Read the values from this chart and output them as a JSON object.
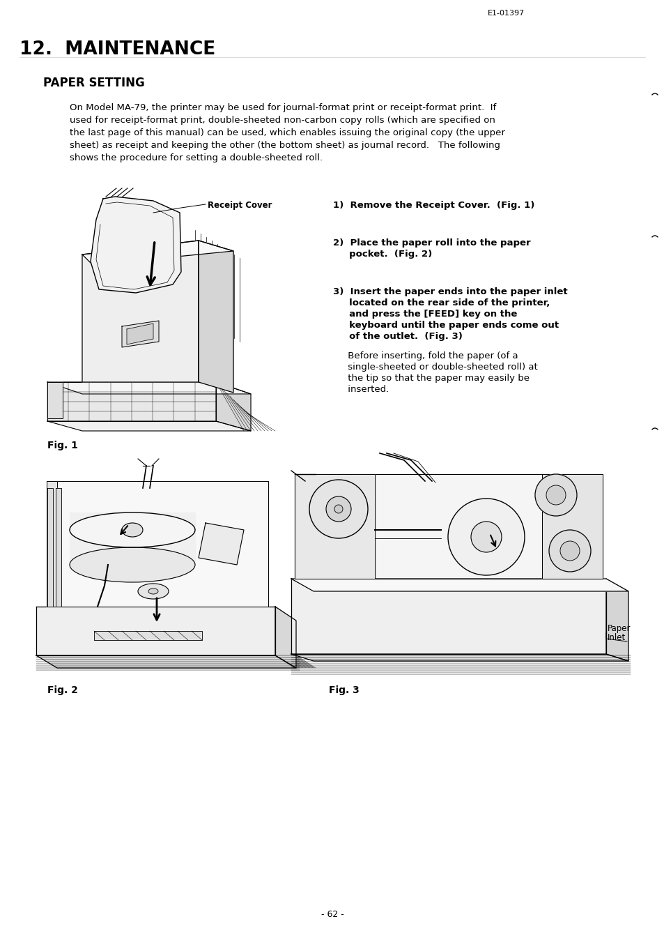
{
  "bg_color": "#ffffff",
  "header_code": "E1-01397",
  "chapter_title": "12.  MAINTENANCE",
  "section_title": "PAPER SETTING",
  "body_line1": "On Model MA-79, the printer may be used for journal-format print or receipt-format print.  If",
  "body_line2": "used for receipt-format print, double-sheeted non-carbon copy rolls (which are specified on",
  "body_line3": "the last page of this manual) can be used, which enables issuing the original copy (the upper",
  "body_line4": "sheet) as receipt and keeping the other (the bottom sheet) as journal record.   The following",
  "body_line5": "shows the procedure for setting a double-sheeted roll.",
  "step1": "1)  Remove the Receipt Cover.  (Fig. 1)",
  "step2a": "2)  Place the paper roll into the paper",
  "step2b": "     pocket.  (Fig. 2)",
  "step3a": "3)  Insert the paper ends into the paper inlet",
  "step3b": "     located on the rear side of the printer,",
  "step3c": "     and press the [FEED] key on the",
  "step3d": "     keyboard until the paper ends come out",
  "step3e": "     of the outlet.  (Fig. 3)",
  "step3f": "     Before inserting, fold the paper (of a",
  "step3g": "     single-sheeted or double-sheeted roll) at",
  "step3h": "     the tip so that the paper may easily be",
  "step3i": "     inserted.",
  "receipt_cover_label": "Receipt Cover",
  "paper_inlet_label1": "Paper",
  "paper_inlet_label2": "Inlet",
  "fig1_label": "Fig. 1",
  "fig2_label": "Fig. 2",
  "fig3_label": "Fig. 3",
  "page_number": "- 62 -"
}
